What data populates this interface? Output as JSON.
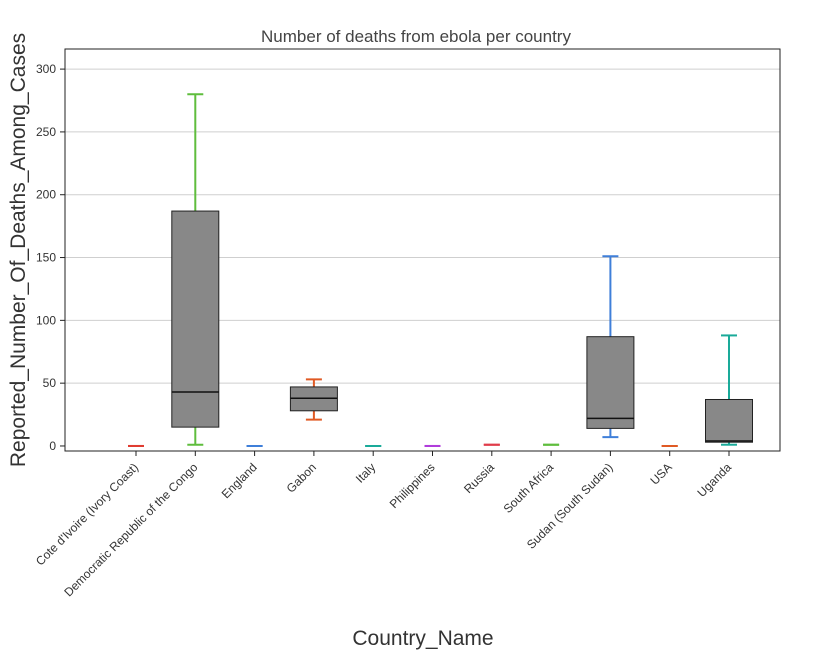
{
  "chart_data": {
    "type": "box",
    "title": "Number of deaths from ebola per country",
    "xlabel": "Country_Name",
    "ylabel": "Reported_Number_Of_Deaths_Among_Cases",
    "ylim": [
      -4,
      316
    ],
    "yticks": [
      0,
      50,
      100,
      150,
      200,
      250,
      300
    ],
    "grid": true,
    "box_fill": "#888888",
    "categories": [
      {
        "name": "Cote d'Ivoire (Ivory Coast)",
        "color": "#e03c31",
        "min": 0,
        "q1": 0,
        "median": 0,
        "q3": 0,
        "max": 0
      },
      {
        "name": "Democratic Republic of the Congo",
        "color": "#5fbd3d",
        "min": 1,
        "q1": 15,
        "median": 43,
        "q3": 187,
        "max": 280
      },
      {
        "name": "England",
        "color": "#3f7fd9",
        "min": 0,
        "q1": 0,
        "median": 0,
        "q3": 0,
        "max": 0
      },
      {
        "name": "Gabon",
        "color": "#e05a24",
        "min": 21,
        "q1": 28,
        "median": 38,
        "q3": 47,
        "max": 53
      },
      {
        "name": "Italy",
        "color": "#1aaa99",
        "min": 0,
        "q1": 0,
        "median": 0,
        "q3": 0,
        "max": 0
      },
      {
        "name": "Philippines",
        "color": "#b03cdb",
        "min": 0,
        "q1": 0,
        "median": 0,
        "q3": 0,
        "max": 0
      },
      {
        "name": "Russia",
        "color": "#e03c4a",
        "min": 1,
        "q1": 1,
        "median": 1,
        "q3": 1,
        "max": 1
      },
      {
        "name": "South Africa",
        "color": "#5fbd3d",
        "min": 1,
        "q1": 1,
        "median": 1,
        "q3": 1,
        "max": 1
      },
      {
        "name": "Sudan (South Sudan)",
        "color": "#3f7fd9",
        "min": 7,
        "q1": 14,
        "median": 22,
        "q3": 87,
        "max": 151
      },
      {
        "name": "USA",
        "color": "#e05a24",
        "min": 0,
        "q1": 0,
        "median": 0,
        "q3": 0,
        "max": 0
      },
      {
        "name": "Uganda",
        "color": "#1aaa99",
        "min": 1,
        "q1": 3,
        "median": 4,
        "q3": 37,
        "max": 88
      }
    ]
  }
}
